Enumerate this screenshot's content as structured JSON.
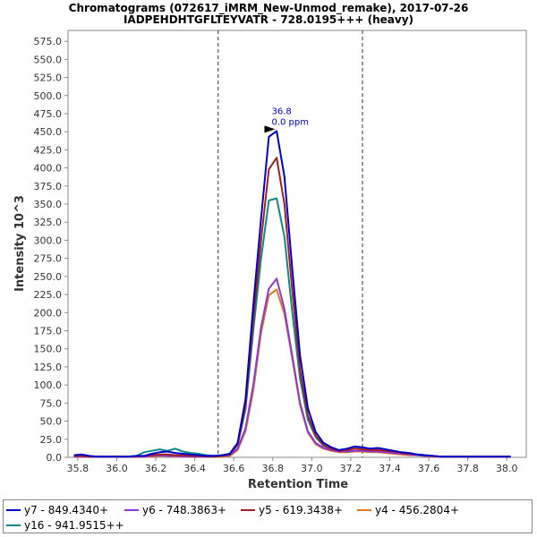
{
  "chart_data": {
    "type": "line",
    "title": "Chromatograms (072617_iMRM_New-Unmod_remake), 2017-07-26",
    "subtitle": "IADPEHDHTGFLTEYVATR - 728.0195+++ (heavy)",
    "xlabel": "Retention Time",
    "ylabel": "Intensity 10^3",
    "xlim": [
      35.75,
      38.1
    ],
    "ylim": [
      0,
      590
    ],
    "xticks": [
      "35.8",
      "36.0",
      "36.2",
      "36.4",
      "36.6",
      "36.8",
      "37.0",
      "37.2",
      "37.4",
      "37.6",
      "37.8",
      "38.0"
    ],
    "yticks": [
      "0.0",
      "25.0",
      "50.0",
      "75.0",
      "100.0",
      "125.0",
      "150.0",
      "175.0",
      "200.0",
      "225.0",
      "250.0",
      "275.0",
      "300.0",
      "325.0",
      "350.0",
      "375.0",
      "400.0",
      "425.0",
      "450.0",
      "475.0",
      "500.0",
      "525.0",
      "550.0",
      "575.0"
    ],
    "boundaries": [
      36.52,
      37.26
    ],
    "peak_annotation": {
      "rt": "36.8",
      "ppm": "0.0 ppm",
      "x": 36.84,
      "y": 451
    },
    "grid": false,
    "legend_position": "bottom",
    "series": [
      {
        "name": "y7 - 849.4340+",
        "color": "#0000cc",
        "x": [
          35.78,
          35.82,
          35.86,
          35.9,
          35.94,
          35.98,
          36.02,
          36.06,
          36.1,
          36.14,
          36.18,
          36.22,
          36.26,
          36.3,
          36.34,
          36.38,
          36.42,
          36.46,
          36.5,
          36.54,
          36.58,
          36.62,
          36.66,
          36.7,
          36.74,
          36.78,
          36.82,
          36.86,
          36.9,
          36.94,
          36.98,
          37.02,
          37.06,
          37.1,
          37.14,
          37.18,
          37.22,
          37.26,
          37.3,
          37.34,
          37.38,
          37.42,
          37.46,
          37.5,
          37.54,
          37.58,
          37.62,
          37.66,
          37.7,
          37.74,
          37.78,
          37.82,
          37.86,
          37.9,
          37.94,
          37.98,
          38.02
        ],
        "y": [
          3,
          4,
          2,
          1,
          1,
          1,
          1,
          1,
          2,
          2,
          5,
          7,
          8,
          6,
          5,
          4,
          3,
          2,
          2,
          3,
          5,
          20,
          80,
          210,
          330,
          443,
          451,
          388,
          260,
          140,
          68,
          35,
          20,
          14,
          10,
          12,
          15,
          14,
          12,
          13,
          11,
          9,
          7,
          6,
          4,
          3,
          2,
          1,
          1,
          1,
          1,
          1,
          1,
          1,
          1,
          1,
          1
        ]
      },
      {
        "name": "y6 - 748.3863+",
        "color": "#8c38d8",
        "x": [
          35.78,
          35.82,
          35.86,
          35.9,
          35.94,
          35.98,
          36.02,
          36.06,
          36.1,
          36.14,
          36.18,
          36.22,
          36.26,
          36.3,
          36.34,
          36.38,
          36.42,
          36.46,
          36.5,
          36.54,
          36.58,
          36.62,
          36.66,
          36.7,
          36.74,
          36.78,
          36.82,
          36.86,
          36.9,
          36.94,
          36.98,
          37.02,
          37.06,
          37.1,
          37.14,
          37.18,
          37.22,
          37.26,
          37.3,
          37.34,
          37.38,
          37.42,
          37.46,
          37.5,
          37.54,
          37.58,
          37.62,
          37.66,
          37.7,
          37.74,
          37.78,
          37.82,
          37.86,
          37.9,
          37.94,
          37.98,
          38.02
        ],
        "y": [
          1,
          1,
          1,
          1,
          1,
          1,
          1,
          1,
          1,
          1,
          2,
          3,
          2,
          2,
          1,
          1,
          1,
          1,
          1,
          2,
          3,
          12,
          40,
          100,
          180,
          233,
          247,
          205,
          140,
          75,
          36,
          20,
          13,
          10,
          8,
          8,
          9,
          9,
          8,
          8,
          7,
          6,
          5,
          4,
          3,
          2,
          2,
          1,
          1,
          1,
          1,
          1,
          1,
          1,
          1,
          1,
          1
        ]
      },
      {
        "name": "y5 - 619.3438+",
        "color": "#a02020",
        "x": [
          35.78,
          35.82,
          35.86,
          35.9,
          35.94,
          35.98,
          36.02,
          36.06,
          36.1,
          36.14,
          36.18,
          36.22,
          36.26,
          36.3,
          36.34,
          36.38,
          36.42,
          36.46,
          36.5,
          36.54,
          36.58,
          36.62,
          36.66,
          36.7,
          36.74,
          36.78,
          36.82,
          36.86,
          36.9,
          36.94,
          36.98,
          37.02,
          37.06,
          37.1,
          37.14,
          37.18,
          37.22,
          37.26,
          37.3,
          37.34,
          37.38,
          37.42,
          37.46,
          37.5,
          37.54,
          37.58,
          37.62,
          37.66,
          37.7,
          37.74,
          37.78,
          37.82,
          37.86,
          37.9,
          37.94,
          37.98,
          38.02
        ],
        "y": [
          2,
          2,
          1,
          1,
          1,
          1,
          1,
          1,
          1,
          2,
          3,
          4,
          4,
          3,
          3,
          2,
          2,
          1,
          1,
          2,
          4,
          18,
          72,
          190,
          300,
          398,
          414,
          350,
          230,
          120,
          58,
          30,
          17,
          12,
          9,
          10,
          12,
          11,
          10,
          10,
          9,
          8,
          6,
          5,
          4,
          3,
          2,
          1,
          1,
          1,
          1,
          1,
          1,
          1,
          1,
          1,
          1
        ]
      },
      {
        "name": "y4 - 456.2804+",
        "color": "#e07820",
        "x": [
          35.78,
          35.82,
          35.86,
          35.9,
          35.94,
          35.98,
          36.02,
          36.06,
          36.1,
          36.14,
          36.18,
          36.22,
          36.26,
          36.3,
          36.34,
          36.38,
          36.42,
          36.46,
          36.5,
          36.54,
          36.58,
          36.62,
          36.66,
          36.7,
          36.74,
          36.78,
          36.82,
          36.86,
          36.9,
          36.94,
          36.98,
          37.02,
          37.06,
          37.1,
          37.14,
          37.18,
          37.22,
          37.26,
          37.3,
          37.34,
          37.38,
          37.42,
          37.46,
          37.5,
          37.54,
          37.58,
          37.62,
          37.66,
          37.7,
          37.74,
          37.78,
          37.82,
          37.86,
          37.9,
          37.94,
          37.98,
          38.02
        ],
        "y": [
          1,
          1,
          1,
          1,
          1,
          1,
          1,
          1,
          1,
          1,
          1,
          2,
          2,
          1,
          1,
          1,
          1,
          1,
          1,
          1,
          2,
          10,
          36,
          92,
          172,
          224,
          232,
          198,
          136,
          72,
          34,
          18,
          12,
          9,
          7,
          7,
          8,
          8,
          7,
          7,
          6,
          5,
          4,
          3,
          3,
          2,
          1,
          1,
          1,
          1,
          1,
          1,
          1,
          1,
          1,
          1,
          1
        ]
      },
      {
        "name": "y16 - 941.9515++",
        "color": "#108888",
        "x": [
          35.78,
          35.82,
          35.86,
          35.9,
          35.94,
          35.98,
          36.02,
          36.06,
          36.1,
          36.14,
          36.18,
          36.22,
          36.26,
          36.3,
          36.34,
          36.38,
          36.42,
          36.46,
          36.5,
          36.54,
          36.58,
          36.62,
          36.66,
          36.7,
          36.74,
          36.78,
          36.82,
          36.86,
          36.9,
          36.94,
          36.98,
          37.02,
          37.06,
          37.1,
          37.14,
          37.18,
          37.22,
          37.26,
          37.3,
          37.34,
          37.38,
          37.42,
          37.46,
          37.5,
          37.54,
          37.58,
          37.62,
          37.66,
          37.7,
          37.74,
          37.78,
          37.82,
          37.86,
          37.9,
          37.94,
          37.98,
          38.02
        ],
        "y": [
          2,
          2,
          1,
          1,
          1,
          1,
          1,
          1,
          2,
          7,
          9,
          11,
          9,
          12,
          8,
          6,
          5,
          3,
          2,
          3,
          5,
          17,
          66,
          175,
          275,
          355,
          358,
          305,
          200,
          108,
          52,
          28,
          16,
          12,
          9,
          10,
          12,
          12,
          11,
          12,
          10,
          8,
          6,
          5,
          4,
          3,
          2,
          1,
          1,
          1,
          1,
          1,
          1,
          1,
          1,
          1,
          1
        ]
      }
    ]
  }
}
